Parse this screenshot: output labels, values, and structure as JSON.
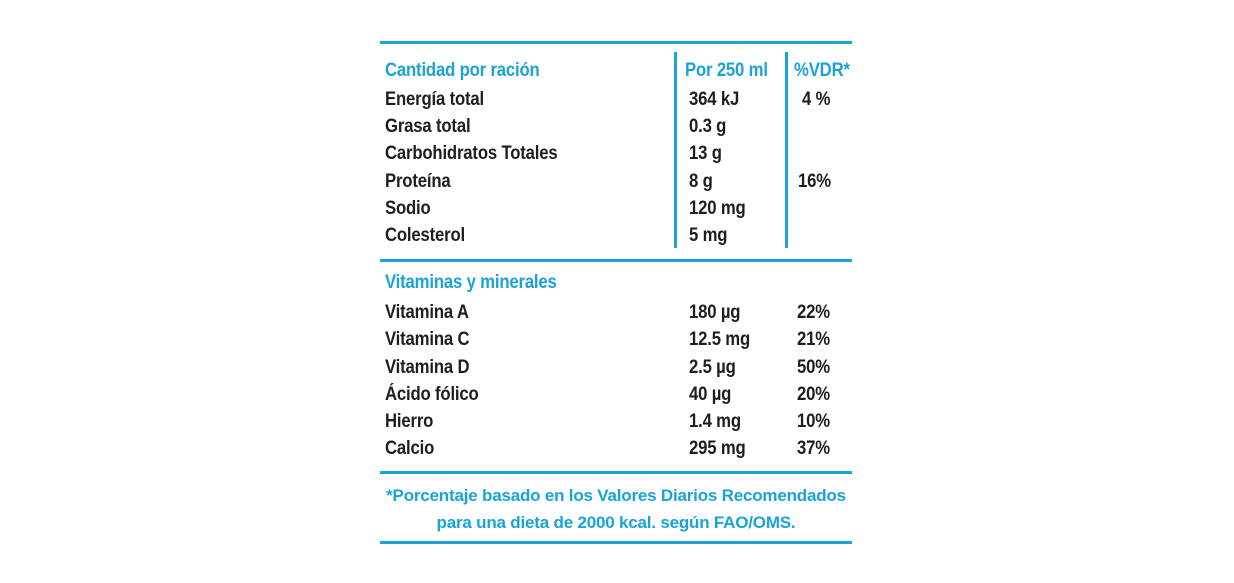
{
  "colors": {
    "accent": "#1aa3d8",
    "text": "#1e1e1e"
  },
  "header": {
    "amount_label": "Cantidad por ración",
    "per_serving": "Por 250 ml",
    "dv": "%VDR*"
  },
  "nutrients": [
    {
      "name": "Energía total",
      "amount": "364 kJ",
      "dv": "4 %"
    },
    {
      "name": "Grasa total",
      "amount": "0.3 g",
      "dv": ""
    },
    {
      "name": "Carbohidratos Totales",
      "amount": "13 g",
      "dv": ""
    },
    {
      "name": "Proteína",
      "amount": "8 g",
      "dv": "16%"
    },
    {
      "name": "Sodio",
      "amount": "120 mg",
      "dv": ""
    },
    {
      "name": "Colesterol",
      "amount": "5 mg",
      "dv": ""
    }
  ],
  "vitamins_header": "Vitaminas y minerales",
  "vitamins": [
    {
      "name": "Vitamina A",
      "amount": "180 µg",
      "dv": "22%"
    },
    {
      "name": "Vitamina C",
      "amount": "12.5 mg",
      "dv": "21%"
    },
    {
      "name": "Vitamina D",
      "amount": "2.5 µg",
      "dv": "50%"
    },
    {
      "name": "Ácido fólico",
      "amount": "40 µg",
      "dv": "20%"
    },
    {
      "name": "Hierro",
      "amount": "1.4 mg",
      "dv": "10%"
    },
    {
      "name": "Calcio",
      "amount": "295 mg",
      "dv": "37%"
    }
  ],
  "footnote": {
    "line1": "*Porcentaje basado en los Valores Diarios Recomendados",
    "line2": "para una dieta de 2000 kcal. según FAO/OMS."
  }
}
